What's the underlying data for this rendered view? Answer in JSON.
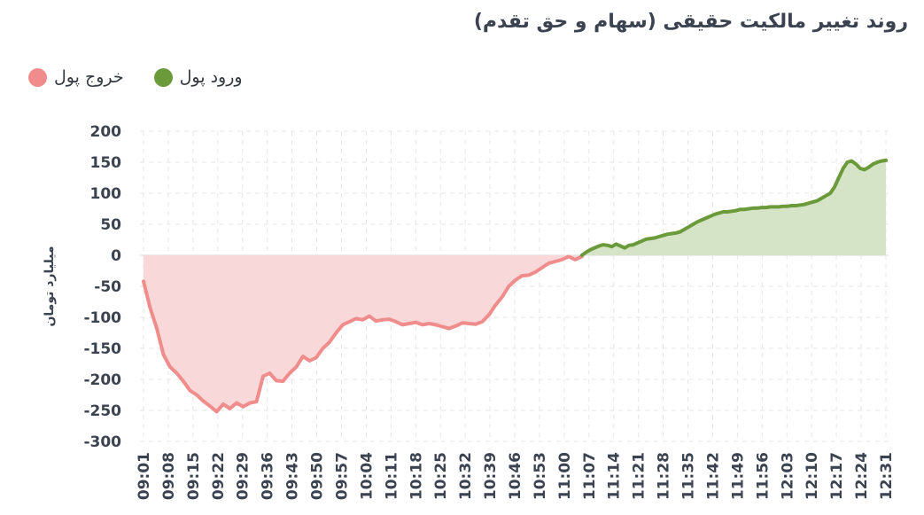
{
  "title": "روند تغییر مالکیت حقیقی (سهام و حق تقدم)",
  "legend": {
    "outflow": {
      "label": "خروج پول",
      "color": "#f08c8c"
    },
    "inflow": {
      "label": "ورود پول",
      "color": "#6a9a3a"
    }
  },
  "chart_data": {
    "type": "area",
    "ylabel": "میلیارد تومان",
    "ylim": [
      -300,
      200
    ],
    "yticks": [
      200,
      150,
      100,
      50,
      0,
      -50,
      -100,
      -150,
      -200,
      -250,
      -300
    ],
    "x_tick_labels": [
      "09:01",
      "09:08",
      "09:15",
      "09:22",
      "09:29",
      "09:36",
      "09:43",
      "09:50",
      "09:57",
      "10:04",
      "10:11",
      "10:18",
      "10:25",
      "10:32",
      "10:39",
      "10:46",
      "10:53",
      "11:00",
      "11:07",
      "11:14",
      "11:21",
      "11:28",
      "11:35",
      "11:42",
      "11:49",
      "11:56",
      "12:03",
      "12:10",
      "12:17",
      "12:24",
      "12:31"
    ],
    "grid": true,
    "legend_position": "top-left",
    "series": [
      {
        "name": "خروج پول",
        "color": "#f08c8c",
        "fill": "#f8d7d7",
        "x": [
          1,
          2,
          3,
          4,
          5,
          6,
          7,
          8,
          9,
          10,
          11,
          12,
          13,
          14,
          15,
          16,
          17,
          18,
          19,
          20,
          21,
          22,
          23,
          24,
          25,
          26,
          27,
          28,
          29,
          30,
          31,
          32,
          33,
          34,
          35,
          36,
          37,
          38,
          39,
          40,
          41,
          42,
          43,
          44,
          45,
          46,
          47,
          48,
          49,
          50,
          51,
          52,
          53,
          54,
          55,
          56,
          57,
          58,
          59,
          60,
          61,
          62,
          63,
          64,
          65,
          66,
          67,
          68,
          69,
          70,
          71,
          72,
          73,
          74,
          75,
          76,
          77,
          78,
          79,
          80,
          81,
          82,
          83,
          84,
          85,
          86,
          87,
          88,
          89
        ],
        "values": [
          -42,
          -85,
          -118,
          -160,
          -180,
          -190,
          -203,
          -218,
          -225,
          -235,
          -243,
          -252,
          -240,
          -247,
          -238,
          -244,
          -238,
          -236,
          -195,
          -190,
          -202,
          -203,
          -190,
          -180,
          -163,
          -170,
          -165,
          -150,
          -140,
          -125,
          -112,
          -107,
          -102,
          -104,
          -98,
          -106,
          -104,
          -103,
          -107,
          -112,
          -110,
          -108,
          -112,
          -110,
          -112,
          -115,
          -118,
          -114,
          -109,
          -110,
          -111,
          -107,
          -96,
          -80,
          -67,
          -50,
          -40,
          -33,
          -32,
          -27,
          -20,
          -13,
          -10,
          -7,
          -2,
          -7,
          -2,
          -1,
          8,
          12,
          15,
          19,
          17,
          15,
          16,
          13,
          15,
          14,
          17,
          19,
          25,
          27,
          29,
          33,
          37,
          41,
          48,
          55,
          60
        ],
        "x_cont": [
          90,
          91,
          92,
          93,
          94,
          95,
          96,
          97,
          98,
          99,
          100,
          101,
          102,
          103,
          104,
          105,
          106,
          107,
          108,
          109,
          110,
          111,
          112,
          113,
          114,
          115,
          116,
          117,
          118,
          119,
          120,
          121,
          122,
          123,
          124,
          125,
          126,
          127,
          128,
          129,
          130,
          131,
          132,
          133,
          134,
          135,
          136,
          137,
          138,
          139,
          140,
          141,
          142,
          143,
          144,
          145,
          146,
          147,
          148,
          149,
          150,
          151,
          152,
          153,
          154,
          155,
          156,
          157,
          158,
          159,
          160,
          161,
          162,
          163,
          164,
          165,
          166,
          167,
          168,
          169,
          170,
          171,
          172,
          173,
          174,
          175,
          176,
          177,
          178,
          179,
          180,
          181,
          182,
          183,
          184,
          185,
          186,
          187,
          188,
          189,
          190,
          191,
          192,
          193,
          194,
          195,
          196,
          197,
          198,
          199,
          200,
          201,
          202,
          203,
          204,
          205,
          206,
          207,
          208,
          209,
          210,
          211
        ]
      }
    ],
    "inflow_start_minute": 124,
    "inflow_values": [
      0,
      5,
      9,
      12,
      15,
      17,
      16,
      14,
      18,
      15,
      12,
      16,
      17,
      20,
      23,
      26,
      27,
      28,
      30,
      32,
      34,
      35,
      36,
      38,
      42,
      46,
      50,
      54,
      57,
      60,
      63,
      66,
      68,
      70,
      70,
      71,
      72,
      74,
      74,
      75,
      76,
      76,
      77,
      77,
      78,
      78,
      78,
      79,
      79,
      80,
      80,
      81,
      82,
      84,
      86,
      88,
      92,
      96,
      100,
      110,
      125,
      140,
      150,
      152,
      147,
      140,
      138,
      142,
      147,
      150,
      152,
      153
    ]
  }
}
